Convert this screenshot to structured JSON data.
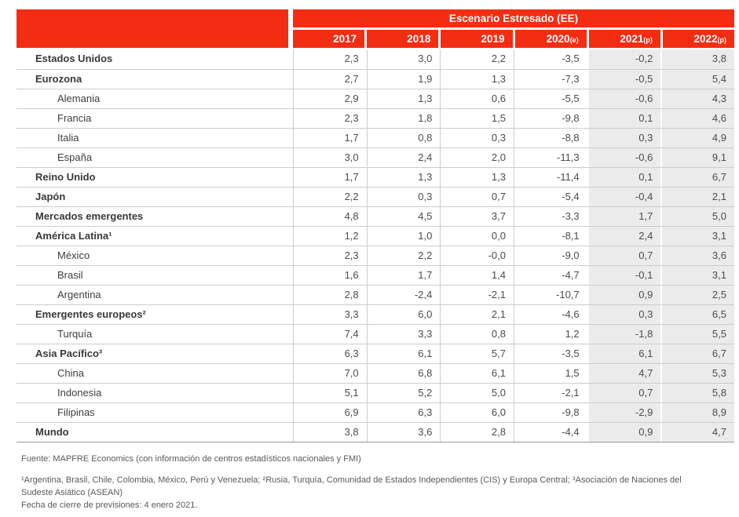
{
  "table": {
    "scenario_header": "Escenario Estresado (EE)",
    "columns": [
      {
        "year": "2017",
        "suffix": ""
      },
      {
        "year": "2018",
        "suffix": ""
      },
      {
        "year": "2019",
        "suffix": ""
      },
      {
        "year": "2020",
        "suffix": "(e)"
      },
      {
        "year": "2021",
        "suffix": "(p)"
      },
      {
        "year": "2022",
        "suffix": "(p)"
      }
    ],
    "shaded_column_indices": [
      4,
      5
    ],
    "rows": [
      {
        "label": "Estados Unidos",
        "bold": true,
        "indent": false,
        "values": [
          "2,3",
          "3,0",
          "2,2",
          "-3,5",
          "-0,2",
          "3,8"
        ]
      },
      {
        "label": "Eurozona",
        "bold": true,
        "indent": false,
        "values": [
          "2,7",
          "1,9",
          "1,3",
          "-7,3",
          "-0,5",
          "5,4"
        ]
      },
      {
        "label": "Alemania",
        "bold": false,
        "indent": true,
        "values": [
          "2,9",
          "1,3",
          "0,6",
          "-5,5",
          "-0,6",
          "4,3"
        ]
      },
      {
        "label": "Francia",
        "bold": false,
        "indent": true,
        "values": [
          "2,3",
          "1,8",
          "1,5",
          "-9,8",
          "0,1",
          "4,6"
        ]
      },
      {
        "label": "Italia",
        "bold": false,
        "indent": true,
        "values": [
          "1,7",
          "0,8",
          "0,3",
          "-8,8",
          "0,3",
          "4,9"
        ]
      },
      {
        "label": "España",
        "bold": false,
        "indent": true,
        "values": [
          "3,0",
          "2,4",
          "2,0",
          "-11,3",
          "-0,6",
          "9,1"
        ]
      },
      {
        "label": "Reino Unido",
        "bold": true,
        "indent": false,
        "values": [
          "1,7",
          "1,3",
          "1,3",
          "-11,4",
          "0,1",
          "6,7"
        ]
      },
      {
        "label": "Japón",
        "bold": true,
        "indent": false,
        "values": [
          "2,2",
          "0,3",
          "0,7",
          "-5,4",
          "-0,4",
          "2,1"
        ]
      },
      {
        "label": "Mercados emergentes",
        "bold": true,
        "indent": false,
        "values": [
          "4,8",
          "4,5",
          "3,7",
          "-3,3",
          "1,7",
          "5,0"
        ]
      },
      {
        "label": "América Latina¹",
        "bold": true,
        "indent": false,
        "values": [
          "1,2",
          "1,0",
          "0,0",
          "-8,1",
          "2,4",
          "3,1"
        ]
      },
      {
        "label": "México",
        "bold": false,
        "indent": true,
        "values": [
          "2,3",
          "2,2",
          "-0,0",
          "-9,0",
          "0,7",
          "3,6"
        ]
      },
      {
        "label": "Brasil",
        "bold": false,
        "indent": true,
        "values": [
          "1,6",
          "1,7",
          "1,4",
          "-4,7",
          "-0,1",
          "3,1"
        ]
      },
      {
        "label": "Argentina",
        "bold": false,
        "indent": true,
        "values": [
          "2,8",
          "-2,4",
          "-2,1",
          "-10,7",
          "0,9",
          "2,5"
        ]
      },
      {
        "label": "Emergentes europeos²",
        "bold": true,
        "indent": false,
        "values": [
          "3,3",
          "6,0",
          "2,1",
          "-4,6",
          "0,3",
          "6,5"
        ]
      },
      {
        "label": "Turquía",
        "bold": false,
        "indent": true,
        "values": [
          "7,4",
          "3,3",
          "0,8",
          "1,2",
          "-1,8",
          "5,5"
        ]
      },
      {
        "label": "Asia Pacífico³",
        "bold": true,
        "indent": false,
        "values": [
          "6,3",
          "6,1",
          "5,7",
          "-3,5",
          "6,1",
          "6,7"
        ]
      },
      {
        "label": "China",
        "bold": false,
        "indent": true,
        "values": [
          "7,0",
          "6,8",
          "6,1",
          "1,5",
          "4,7",
          "5,3"
        ]
      },
      {
        "label": "Indonesia",
        "bold": false,
        "indent": true,
        "values": [
          "5,1",
          "5,2",
          "5,0",
          "-2,1",
          "0,7",
          "5,8"
        ]
      },
      {
        "label": "Filipinas",
        "bold": false,
        "indent": true,
        "values": [
          "6,9",
          "6,3",
          "6,0",
          "-9,8",
          "-2,9",
          "8,9"
        ]
      },
      {
        "label": "Mundo",
        "bold": true,
        "indent": false,
        "values": [
          "3,8",
          "3,6",
          "2,8",
          "-4,4",
          "0,9",
          "4,7"
        ]
      }
    ]
  },
  "footer": {
    "fuente": "Fuente: MAPFRE Economics (con información de centros estadísticos nacionales y FMI)",
    "footnote_regions": "¹Argentina, Brasil, Chile, Colombia, México, Perú y Venezuela; ²Rusia, Turquía, Comunidad de Estados Independientes (CIS) y Europa Central; ³Asociación de Naciones del Sudeste Asiático (ASEAN)",
    "footnote_fecha": "Fecha de cierre de previsiones: 4 enero 2021."
  },
  "colors": {
    "header_red": "#F42D12",
    "shaded_column_bg": "#EBEBEB",
    "row_divider": "#CCCCCC",
    "table_bottom_border": "#999999",
    "label_text": "#3E3E3D",
    "value_text": "#4B4B4A",
    "footer_text": "#59595B"
  },
  "chart_data": {
    "type": "table",
    "title": "Escenario Estresado (EE)",
    "columns": [
      "2017",
      "2018",
      "2019",
      "2020(e)",
      "2021(p)",
      "2022(p)"
    ],
    "series": [
      {
        "name": "Estados Unidos",
        "values": [
          2.3,
          3.0,
          2.2,
          -3.5,
          -0.2,
          3.8
        ]
      },
      {
        "name": "Eurozona",
        "values": [
          2.7,
          1.9,
          1.3,
          -7.3,
          -0.5,
          5.4
        ]
      },
      {
        "name": "Alemania",
        "values": [
          2.9,
          1.3,
          0.6,
          -5.5,
          -0.6,
          4.3
        ]
      },
      {
        "name": "Francia",
        "values": [
          2.3,
          1.8,
          1.5,
          -9.8,
          0.1,
          4.6
        ]
      },
      {
        "name": "Italia",
        "values": [
          1.7,
          0.8,
          0.3,
          -8.8,
          0.3,
          4.9
        ]
      },
      {
        "name": "España",
        "values": [
          3.0,
          2.4,
          2.0,
          -11.3,
          -0.6,
          9.1
        ]
      },
      {
        "name": "Reino Unido",
        "values": [
          1.7,
          1.3,
          1.3,
          -11.4,
          0.1,
          6.7
        ]
      },
      {
        "name": "Japón",
        "values": [
          2.2,
          0.3,
          0.7,
          -5.4,
          -0.4,
          2.1
        ]
      },
      {
        "name": "Mercados emergentes",
        "values": [
          4.8,
          4.5,
          3.7,
          -3.3,
          1.7,
          5.0
        ]
      },
      {
        "name": "América Latina",
        "values": [
          1.2,
          1.0,
          0.0,
          -8.1,
          2.4,
          3.1
        ]
      },
      {
        "name": "México",
        "values": [
          2.3,
          2.2,
          -0.0,
          -9.0,
          0.7,
          3.6
        ]
      },
      {
        "name": "Brasil",
        "values": [
          1.6,
          1.7,
          1.4,
          -4.7,
          -0.1,
          3.1
        ]
      },
      {
        "name": "Argentina",
        "values": [
          2.8,
          -2.4,
          -2.1,
          -10.7,
          0.9,
          2.5
        ]
      },
      {
        "name": "Emergentes europeos",
        "values": [
          3.3,
          6.0,
          2.1,
          -4.6,
          0.3,
          6.5
        ]
      },
      {
        "name": "Turquía",
        "values": [
          7.4,
          3.3,
          0.8,
          1.2,
          -1.8,
          5.5
        ]
      },
      {
        "name": "Asia Pacífico",
        "values": [
          6.3,
          6.1,
          5.7,
          -3.5,
          6.1,
          6.7
        ]
      },
      {
        "name": "China",
        "values": [
          7.0,
          6.8,
          6.1,
          1.5,
          4.7,
          5.3
        ]
      },
      {
        "name": "Indonesia",
        "values": [
          5.1,
          5.2,
          5.0,
          -2.1,
          0.7,
          5.8
        ]
      },
      {
        "name": "Filipinas",
        "values": [
          6.9,
          6.3,
          6.0,
          -9.8,
          -2.9,
          8.9
        ]
      },
      {
        "name": "Mundo",
        "values": [
          3.8,
          3.6,
          2.8,
          -4.4,
          0.9,
          4.7
        ]
      }
    ]
  }
}
